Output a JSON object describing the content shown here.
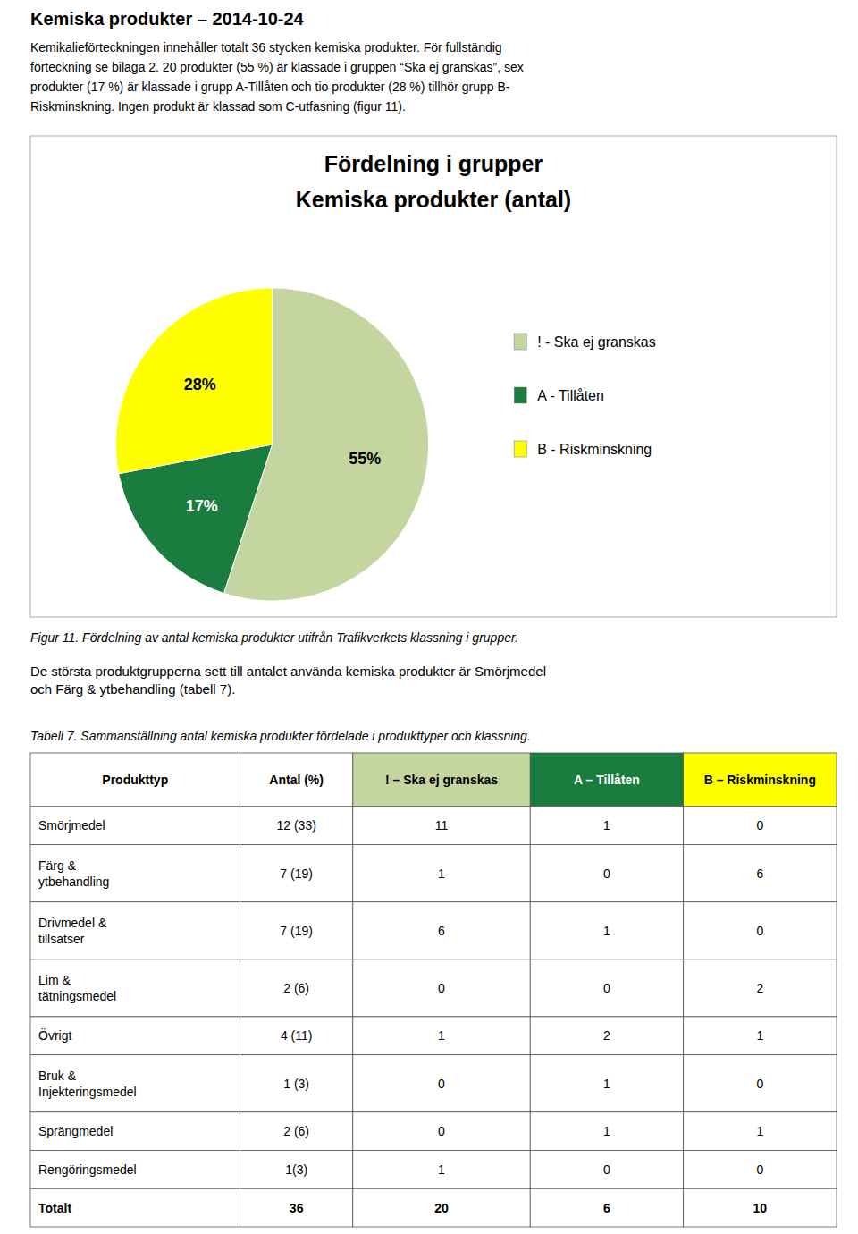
{
  "page_title": "Kemiska produkter – 2014-10-24",
  "page_text": [
    "Kemikalieförteckningen innehåller totalt 36 stycken kemiska produkter. För fullständig",
    "förteckning se bilaga 2. 20 produkter (55 %) är klassade i gruppen “Ska ej granskas”, sex",
    "produkter (17 %) är klassade i grupp A-Tillåten och tio produkter (28 %) tillhör grupp B-",
    "Riskminskning. Ingen produkt är klassad som C-utfasning (figur 11)."
  ],
  "chart_data": {
    "type": "pie",
    "title": "Fördelning i grupper",
    "subtitle": "Kemiska produkter (antal)",
    "categories": [
      "! - Ska ej granskas",
      "A - Tillåten",
      "B - Riskminskning"
    ],
    "values": [
      55,
      17,
      28
    ],
    "value_labels": [
      "55%",
      "17%",
      "28%"
    ],
    "colors": [
      "#c5d5a0",
      "#1a7c3e",
      "#ffff00"
    ],
    "data_labels": true
  },
  "figure_caption": "Figur 11.  Fördelning av antal kemiska produkter utifrån Trafikverkets klassning i grupper.",
  "text_below_figure": "De största produktgrupperna sett till antalet använda kemiska produkter är Smörjmedel\noch Färg & ytbehandling (tabell 7).",
  "table": {
    "caption": "Tabell 7.  Sammanställning antal kemiska produkter fördelade i produkttyper och klassning.",
    "headers": [
      "Produkttyp",
      "Antal (%)",
      "! – Ska ej granskas",
      "A – Tillåten",
      "B – Riskminskning"
    ],
    "header_colors": [
      "#ffffff",
      "#ffffff",
      "#c5d5a0",
      "#1a7c3e",
      "#ffff00"
    ],
    "rows": [
      [
        "Smörjmedel",
        "12 (33)",
        "11",
        "1",
        "0"
      ],
      [
        "Färg &\nytbehandling",
        "7 (19)",
        "1",
        "0",
        "6"
      ],
      [
        "Drivmedel &\ntillsatser",
        "7 (19)",
        "6",
        "1",
        "0"
      ],
      [
        "Lim &\ntätningsmedel",
        "2 (6)",
        "0",
        "0",
        "2"
      ],
      [
        "Övrigt",
        "4 (11)",
        "1",
        "2",
        "1"
      ],
      [
        "Bruk &\nInjekteringsmedel",
        "1 (3)",
        "0",
        "1",
        "0"
      ],
      [
        "Sprängmedel",
        "2 (6)",
        "0",
        "1",
        "1"
      ],
      [
        "Rengöringsmedel",
        "1(3)",
        "1",
        "0",
        "0"
      ],
      [
        "Totalt",
        "36",
        "20",
        "6",
        "10"
      ]
    ],
    "bold_rows": [
      false,
      false,
      false,
      false,
      false,
      false,
      false,
      false,
      true
    ]
  }
}
